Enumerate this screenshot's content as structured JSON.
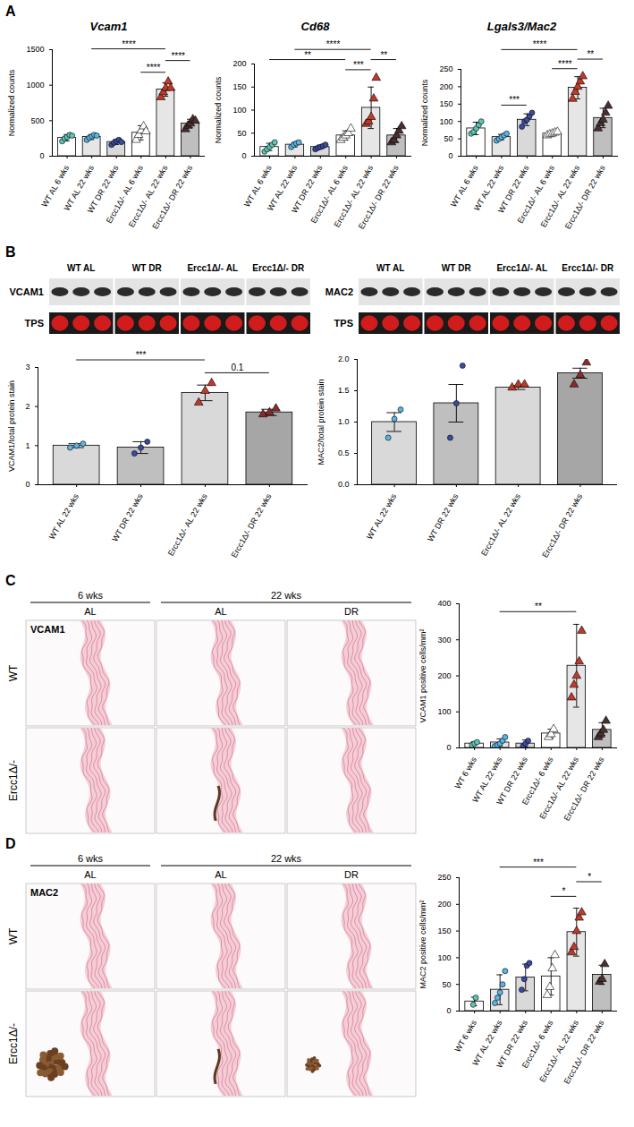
{
  "chart_data": [
    {
      "type": "bar",
      "panel": "A",
      "title": "Vcam1",
      "y_label": "Normalized counts",
      "categories": [
        "WT AL 6 wks",
        "WT AL 22 wks",
        "WT DR 22 wks",
        "Ercc1Δ/- AL 6 wks",
        "Ercc1Δ/- AL 22 wks",
        "Ercc1Δ/- DR 22 wks"
      ],
      "values": [
        260,
        270,
        200,
        330,
        940,
        460
      ],
      "error": [
        45,
        35,
        35,
        100,
        95,
        60
      ],
      "colors": [
        "#ffffff",
        "#e6e6e6",
        "#d9d9d9",
        "#ffffff",
        "#e6e6e6",
        "#bfbfbf"
      ],
      "points": [
        {
          "color": "#5fc4b4",
          "marker": "circle",
          "values": [
            210,
            250,
            270,
            300,
            290
          ]
        },
        {
          "color": "#5ab4e5",
          "marker": "circle",
          "values": [
            230,
            260,
            280,
            300,
            290
          ]
        },
        {
          "color": "#3b4ba0",
          "marker": "circle",
          "values": [
            160,
            190,
            210,
            230,
            200
          ]
        },
        {
          "color": "#ffffff",
          "marker": "triangle",
          "values": [
            230,
            300,
            360,
            420,
            350
          ]
        },
        {
          "color": "#c0392b",
          "marker": "triangle",
          "values": [
            830,
            900,
            960,
            1050,
            960
          ]
        },
        {
          "color": "#4a2f2f",
          "marker": "triangle",
          "values": [
            380,
            430,
            460,
            520,
            500
          ]
        }
      ],
      "ylim": [
        0,
        1500
      ],
      "yticks": [
        0,
        500,
        1000,
        1500
      ],
      "significance": [
        {
          "groups": [
            "WT AL 22 wks",
            "Ercc1Δ/- AL 22 wks"
          ],
          "label": "****"
        },
        {
          "groups": [
            "Ercc1Δ/- AL 6 wks",
            "Ercc1Δ/- AL 22 wks"
          ],
          "label": "****"
        },
        {
          "groups": [
            "Ercc1Δ/- AL 22 wks",
            "Ercc1Δ/- DR 22 wks"
          ],
          "label": "****"
        }
      ]
    },
    {
      "type": "bar",
      "panel": "A",
      "title": "Cd68",
      "y_label": "Normalized counts",
      "categories": [
        "WT AL 6 wks",
        "WT AL 22 wks",
        "WT DR 22 wks",
        "Ercc1Δ/- AL 6 wks",
        "Ercc1Δ/- AL 22 wks",
        "Ercc1Δ/- DR 22 wks"
      ],
      "values": [
        20,
        25,
        20,
        45,
        105,
        45
      ],
      "error": [
        8,
        5,
        4,
        10,
        45,
        15
      ],
      "colors": [
        "#ffffff",
        "#e6e6e6",
        "#d9d9d9",
        "#ffffff",
        "#e6e6e6",
        "#bfbfbf"
      ],
      "points": [
        {
          "color": "#5fc4b4",
          "marker": "circle",
          "values": [
            10,
            15,
            20,
            25,
            30
          ]
        },
        {
          "color": "#5ab4e5",
          "marker": "circle",
          "values": [
            20,
            25,
            28,
            30
          ]
        },
        {
          "color": "#3b4ba0",
          "marker": "circle",
          "values": [
            15,
            18,
            20,
            22,
            25
          ]
        },
        {
          "color": "#ffffff",
          "marker": "triangle",
          "values": [
            35,
            40,
            45,
            50,
            60
          ]
        },
        {
          "color": "#c0392b",
          "marker": "triangle",
          "values": [
            70,
            75,
            85,
            125,
            170
          ]
        },
        {
          "color": "#4a2f2f",
          "marker": "triangle",
          "values": [
            30,
            35,
            45,
            55,
            65
          ]
        }
      ],
      "ylim": [
        0,
        200
      ],
      "yticks": [
        0,
        50,
        100,
        150,
        200
      ],
      "significance": [
        {
          "groups": [
            "WT AL 6 wks",
            "Ercc1Δ/- AL 6 wks"
          ],
          "label": "**"
        },
        {
          "groups": [
            "WT AL 22 wks",
            "Ercc1Δ/- AL 22 wks"
          ],
          "label": "****"
        },
        {
          "groups": [
            "Ercc1Δ/- AL 6 wks",
            "Ercc1Δ/- AL 22 wks"
          ],
          "label": "***"
        },
        {
          "groups": [
            "Ercc1Δ/- AL 22 wks",
            "Ercc1Δ/- DR 22 wks"
          ],
          "label": "**"
        }
      ]
    },
    {
      "type": "bar",
      "panel": "A",
      "title": "Lgals3/Mac2",
      "y_label": "Normalized counts",
      "categories": [
        "WT AL 6 wks",
        "WT AL 22 wks",
        "WT DR 22 wks",
        "Ercc1Δ/- AL 6 wks",
        "Ercc1Δ/- AL 22 wks",
        "Ercc1Δ/- DR 22 wks"
      ],
      "values": [
        80,
        55,
        105,
        65,
        197,
        110
      ],
      "error": [
        18,
        8,
        17,
        4,
        32,
        28
      ],
      "colors": [
        "#ffffff",
        "#e6e6e6",
        "#d9d9d9",
        "#ffffff",
        "#e6e6e6",
        "#bfbfbf"
      ],
      "points": [
        {
          "color": "#5fc4b4",
          "marker": "circle",
          "values": [
            65,
            70,
            80,
            90,
            100
          ]
        },
        {
          "color": "#5ab4e5",
          "marker": "circle",
          "values": [
            45,
            50,
            55,
            60,
            65
          ]
        },
        {
          "color": "#3b4ba0",
          "marker": "circle",
          "values": [
            85,
            100,
            105,
            115,
            125
          ]
        },
        {
          "color": "#ffffff",
          "marker": "triangle",
          "values": [
            60,
            63,
            65,
            68,
            70
          ]
        },
        {
          "color": "#c0392b",
          "marker": "triangle",
          "values": [
            165,
            185,
            200,
            215,
            230
          ]
        },
        {
          "color": "#4a2f2f",
          "marker": "triangle",
          "values": [
            80,
            95,
            105,
            125,
            145
          ]
        }
      ],
      "ylim": [
        0,
        250
      ],
      "yticks": [
        0,
        50,
        100,
        150,
        200,
        250
      ],
      "significance": [
        {
          "groups": [
            "WT AL 22 wks",
            "WT DR 22 wks"
          ],
          "label": "***"
        },
        {
          "groups": [
            "WT AL 22 wks",
            "Ercc1Δ/- AL 22 wks"
          ],
          "label": "****"
        },
        {
          "groups": [
            "Ercc1Δ/- AL 6 wks",
            "Ercc1Δ/- AL 22 wks"
          ],
          "label": "****"
        },
        {
          "groups": [
            "Ercc1Δ/- AL 22 wks",
            "Ercc1Δ/- DR 22 wks"
          ],
          "label": "**"
        }
      ]
    },
    {
      "type": "bar",
      "panel": "B",
      "y_label": "VCAM1/total protein stain",
      "categories": [
        "WT AL 22 wks",
        "WT DR 22 wks",
        "Ercc1Δ/- AL 22 wks",
        "Ercc1Δ/- DR 22 wks"
      ],
      "values": [
        1.0,
        0.95,
        2.35,
        1.85
      ],
      "error": [
        0.05,
        0.15,
        0.2,
        0.08
      ],
      "colors": [
        "#d9d9d9",
        "#bfbfbf",
        "#d9d9d9",
        "#a6a6a6"
      ],
      "points": [
        {
          "color": "#5ab4e5",
          "marker": "circle",
          "values": [
            0.95,
            1.0,
            1.05
          ]
        },
        {
          "color": "#3b4ba0",
          "marker": "circle",
          "values": [
            0.8,
            0.95,
            1.1
          ]
        },
        {
          "color": "#c0392b",
          "marker": "triangle",
          "values": [
            2.1,
            2.4,
            2.6
          ]
        },
        {
          "color": "#8b2b2b",
          "marker": "triangle",
          "values": [
            1.8,
            1.85,
            1.95
          ]
        }
      ],
      "ylim": [
        0,
        3
      ],
      "yticks": [
        0,
        1,
        2,
        3
      ],
      "significance": [
        {
          "groups": [
            "WT AL 22 wks",
            "Ercc1Δ/- AL 22 wks"
          ],
          "label": "***"
        },
        {
          "groups": [
            "Ercc1Δ/- AL 22 wks",
            "Ercc1Δ/- DR 22 wks"
          ],
          "label": "0.1"
        }
      ]
    },
    {
      "type": "bar",
      "panel": "B",
      "y_label": "MAC2/total protein stain",
      "categories": [
        "WT AL 22 wks",
        "WT DR 22 wks",
        "Ercc1Δ/- AL 22 wks",
        "Ercc1Δ/- DR 22 wks"
      ],
      "values": [
        1.0,
        1.3,
        1.55,
        1.78
      ],
      "error": [
        0.15,
        0.3,
        0.03,
        0.08
      ],
      "colors": [
        "#d9d9d9",
        "#bfbfbf",
        "#d9d9d9",
        "#a6a6a6"
      ],
      "points": [
        {
          "color": "#5ab4e5",
          "marker": "circle",
          "values": [
            0.75,
            1.05,
            1.2
          ]
        },
        {
          "color": "#3b4ba0",
          "marker": "circle",
          "values": [
            0.75,
            1.3,
            1.9
          ]
        },
        {
          "color": "#c0392b",
          "marker": "triangle",
          "values": [
            1.55,
            1.6,
            1.6
          ]
        },
        {
          "color": "#8b2b2b",
          "marker": "triangle",
          "values": [
            1.6,
            1.75,
            1.95
          ]
        }
      ],
      "ylim": [
        0,
        2
      ],
      "yticks": [
        {
          "value": 0,
          "label": "0.0"
        },
        0.5,
        {
          "value": 1,
          "label": "1.0"
        },
        1.5,
        {
          "value": 2,
          "label": "2.0"
        }
      ],
      "significance": []
    },
    {
      "type": "bar",
      "panel": "C",
      "y_label": "VCAM1 positive cells/mm²",
      "categories": [
        "WT 6 wks",
        "WT AL 22 wks",
        "WT DR 22 wks",
        "Ercc1Δ/- 6 wks",
        "Ercc1Δ/- AL 22 wks",
        "Ercc1Δ/- DR 22 wks"
      ],
      "values": [
        12,
        15,
        12,
        40,
        228,
        50
      ],
      "error": [
        5,
        10,
        10,
        12,
        115,
        20
      ],
      "colors": [
        "#ffffff",
        "#e6e6e6",
        "#d9d9d9",
        "#ffffff",
        "#e6e6e6",
        "#bfbfbf"
      ],
      "points": [
        {
          "color": "#5fc4b4",
          "marker": "circle",
          "values": [
            8,
            12,
            16
          ]
        },
        {
          "color": "#5ab4e5",
          "marker": "circle",
          "values": [
            5,
            8,
            12,
            20,
            30
          ]
        },
        {
          "color": "#3b4ba0",
          "marker": "circle",
          "values": [
            5,
            12,
            20
          ]
        },
        {
          "color": "#ffffff",
          "marker": "triangle",
          "values": [
            30,
            38,
            52
          ]
        },
        {
          "color": "#c0392b",
          "marker": "triangle",
          "values": [
            140,
            175,
            200,
            240,
            325
          ]
        },
        {
          "color": "#4a2f2f",
          "marker": "triangle",
          "values": [
            30,
            40,
            50,
            75
          ]
        }
      ],
      "ylim": [
        0,
        400
      ],
      "yticks": [
        0,
        100,
        200,
        300,
        400
      ],
      "significance": [
        {
          "groups": [
            "WT AL 22 wks",
            "Ercc1Δ/- AL 22 wks"
          ],
          "label": "**"
        }
      ]
    },
    {
      "type": "bar",
      "panel": "D",
      "y_label": "MAC2 positive cells/mm²",
      "categories": [
        "WT 6 wks",
        "WT AL 22 wks",
        "WT DR 22 wks",
        "Ercc1Δ/- 6 wks",
        "Ercc1Δ/- AL 22 wks",
        "Ercc1Δ/- DR 22 wks"
      ],
      "values": [
        18,
        40,
        63,
        65,
        148,
        68
      ],
      "error": [
        8,
        28,
        25,
        35,
        45,
        18
      ],
      "colors": [
        "#ffffff",
        "#e6e6e6",
        "#d9d9d9",
        "#ffffff",
        "#e6e6e6",
        "#bfbfbf"
      ],
      "points": [
        {
          "color": "#5fc4b4",
          "marker": "circle",
          "values": [
            12,
            25
          ]
        },
        {
          "color": "#5ab4e5",
          "marker": "circle",
          "values": [
            15,
            25,
            35,
            50,
            75
          ]
        },
        {
          "color": "#3b4ba0",
          "marker": "circle",
          "values": [
            40,
            60,
            85,
            90
          ]
        },
        {
          "color": "#ffffff",
          "marker": "triangle",
          "values": [
            30,
            45,
            80,
            105
          ]
        },
        {
          "color": "#c0392b",
          "marker": "triangle",
          "values": [
            110,
            120,
            150,
            175,
            185
          ]
        },
        {
          "color": "#4a2f2f",
          "marker": "triangle",
          "values": [
            55,
            60,
            88
          ]
        }
      ],
      "ylim": [
        0,
        250
      ],
      "yticks": [
        0,
        50,
        100,
        150,
        200,
        250
      ],
      "significance": [
        {
          "groups": [
            "WT AL 22 wks",
            "Ercc1Δ/- AL 22 wks"
          ],
          "label": "***"
        },
        {
          "groups": [
            "Ercc1Δ/- 6 wks",
            "Ercc1Δ/- AL 22 wks"
          ],
          "label": "*"
        },
        {
          "groups": [
            "Ercc1Δ/- AL 22 wks",
            "Ercc1Δ/- DR 22 wks"
          ],
          "label": "*"
        }
      ]
    }
  ],
  "blots": [
    {
      "panel": "B",
      "rows": [
        "VCAM1",
        "TPS"
      ],
      "groups": [
        "WT AL",
        "WT DR",
        "Ercc1Δ/- AL",
        "Ercc1Δ/- DR"
      ],
      "lanes_per_group": 3
    },
    {
      "panel": "B",
      "rows": [
        "MAC2",
        "TPS"
      ],
      "groups": [
        "WT AL",
        "WT DR",
        "Ercc1Δ/- AL",
        "Ercc1Δ/- DR"
      ],
      "lanes_per_group": 3
    }
  ],
  "micrographs": [
    {
      "panel": "C",
      "stain": "VCAM1",
      "column_groups": [
        {
          "label": "6 wks",
          "columns": [
            "AL"
          ]
        },
        {
          "label": "22 wks",
          "columns": [
            "AL",
            "DR"
          ]
        }
      ],
      "rows": [
        "WT",
        "Ercc1Δ/-"
      ]
    },
    {
      "panel": "D",
      "stain": "MAC2",
      "column_groups": [
        {
          "label": "6 wks",
          "columns": [
            "AL"
          ]
        },
        {
          "label": "22 wks",
          "columns": [
            "AL",
            "DR"
          ]
        }
      ],
      "rows": [
        "WT",
        "Ercc1Δ/-"
      ]
    }
  ]
}
